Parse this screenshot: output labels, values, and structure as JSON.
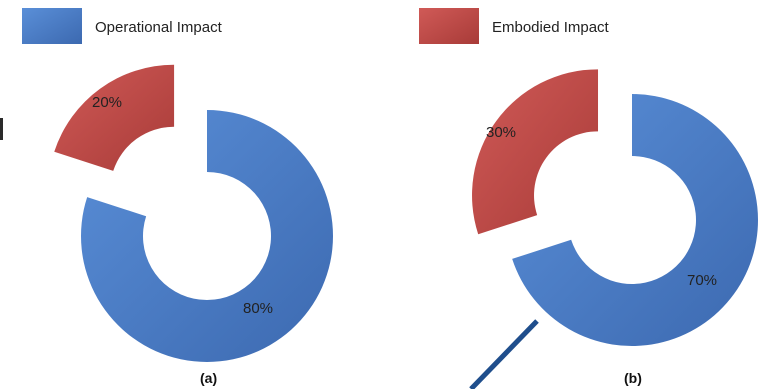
{
  "legend": [
    {
      "label": "Operational Impact",
      "color": "#4a7ec9"
    },
    {
      "label": "Embodied Impact",
      "color": "#c0504d"
    }
  ],
  "chart_data": [
    {
      "type": "pie",
      "variant": "exploded-donut",
      "caption": "(a)",
      "slices": [
        {
          "series": "Embodied Impact",
          "value": 20,
          "label": "20%",
          "color": "#c0504d",
          "exploded": true
        },
        {
          "series": "Operational Impact",
          "value": 80,
          "label": "80%",
          "color": "#4a7ec9",
          "exploded": false
        }
      ]
    },
    {
      "type": "pie",
      "variant": "exploded-donut",
      "caption": "(b)",
      "slices": [
        {
          "series": "Embodied Impact",
          "value": 30,
          "label": "30%",
          "color": "#c0504d",
          "exploded": true
        },
        {
          "series": "Operational Impact",
          "value": 70,
          "label": "70%",
          "color": "#4a7ec9",
          "exploded": false
        }
      ]
    }
  ],
  "colors": {
    "pointer_line": "#1f4e8c",
    "divider": "#2a2a2a"
  }
}
